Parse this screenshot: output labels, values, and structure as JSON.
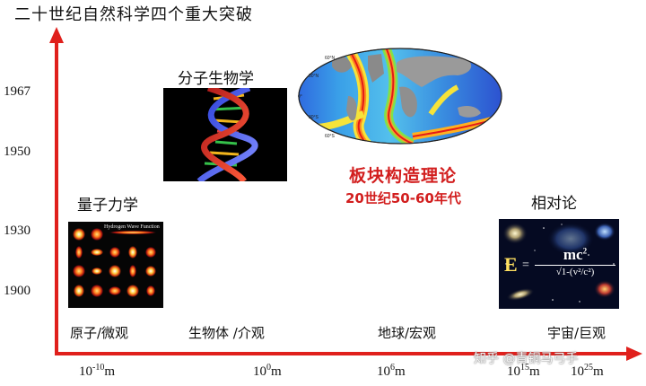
{
  "title": "二十世纪自然科学四个重大突破",
  "years": [
    "1967",
    "1950",
    "1930",
    "1900"
  ],
  "scales": {
    "atom": {
      "base": "10",
      "exp": "-10",
      "unit": "m"
    },
    "bio": {
      "base": "10",
      "exp": "0",
      "unit": "m"
    },
    "earth": {
      "base": "10",
      "exp": "6",
      "unit": "m"
    },
    "galaxy": {
      "base": "10",
      "exp": "15",
      "unit": "m"
    },
    "universe": {
      "base": "10",
      "exp": "25",
      "unit": "m"
    }
  },
  "categories": {
    "atom": "原子/微观",
    "bio": "生物体 /介观",
    "earth": "地球/宏观",
    "universe": "宇宙/巨观"
  },
  "fields": {
    "quantum": "量子力学",
    "molecular_biology": "分子生物学",
    "relativity": "相对论",
    "plate_tectonics": "板块构造理论",
    "plate_tectonics_era": "20世纪50-60年代"
  },
  "hydrogen_image_title": "Hydrogen Wave Function",
  "map_labels": [
    "60°N",
    "30°N",
    "0°",
    "30°S",
    "60°S"
  ],
  "formula": {
    "lhs": "E",
    "numer": "mc",
    "numer_exp": "2",
    "denom": "√1-(v²/c²)"
  },
  "watermark": "知乎 @青铜马弓手",
  "colors": {
    "axis": "#e0201c",
    "highlight": "#d21e1e"
  }
}
